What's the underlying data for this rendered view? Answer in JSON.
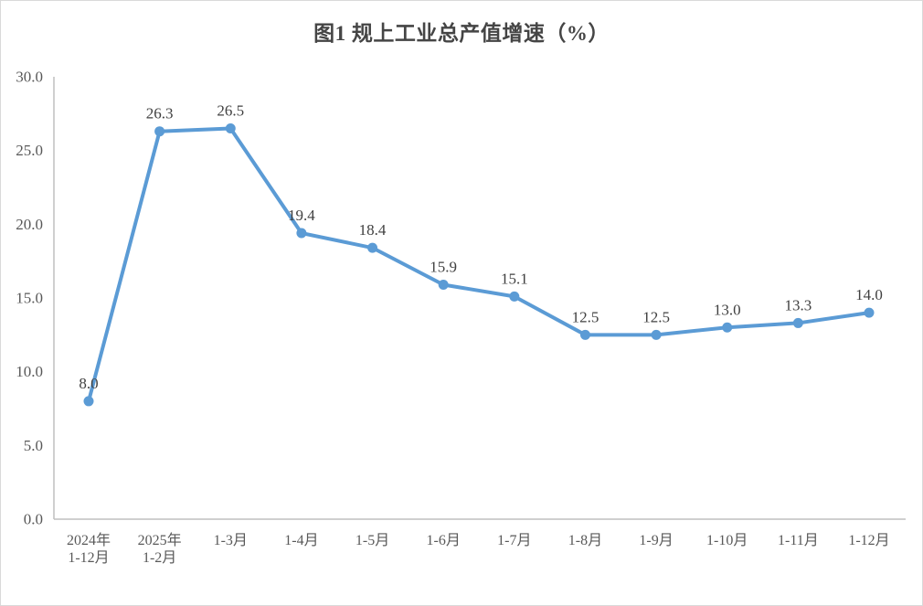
{
  "chart_data": {
    "type": "line",
    "title": "图1 规上工业总产值增速（%）",
    "categories": [
      "2024年\n1-12月",
      "2025年\n1-2月",
      "1-3月",
      "1-4月",
      "1-5月",
      "1-6月",
      "1-7月",
      "1-8月",
      "1-9月",
      "1-10月",
      "1-11月",
      "1-12月"
    ],
    "values": [
      8.0,
      26.3,
      26.5,
      19.4,
      18.4,
      15.9,
      15.1,
      12.5,
      12.5,
      13.0,
      13.3,
      14.0
    ],
    "value_labels": [
      "8.0",
      "26.3",
      "26.5",
      "19.4",
      "18.4",
      "15.9",
      "15.1",
      "12.5",
      "12.5",
      "13.0",
      "13.3",
      "14.0"
    ],
    "yticks": [
      "0.0",
      "5.0",
      "10.0",
      "15.0",
      "20.0",
      "25.0",
      "30.0"
    ],
    "ylim": [
      0,
      30
    ],
    "xlabel": "",
    "ylabel": "",
    "grid": false,
    "legend": "none",
    "colors": {
      "line": "#5B9BD5",
      "marker": "#5B9BD5",
      "axis": "#BFBFBF",
      "tick_label": "#595959",
      "data_label": "#404040",
      "title": "#454545",
      "frame": "#D9D9D9",
      "background": "#FFFFFF"
    }
  }
}
